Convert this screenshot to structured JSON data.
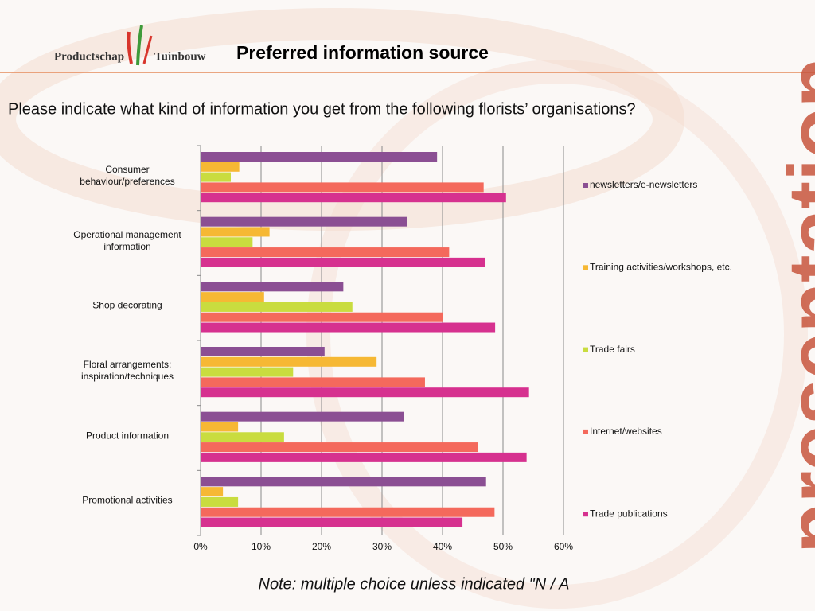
{
  "header": {
    "logo_left": "Productschap",
    "logo_right": "Tuinbouw",
    "title": "Preferred information source"
  },
  "question": "Please indicate what kind of information you get from the following florists’ organisations?",
  "note": "Note: multiple choice unless indicated \"N / A",
  "watermark": "presentation",
  "chart_data": {
    "type": "hbar",
    "categories": [
      "Consumer behaviour/preferences",
      "Operational management information",
      "Shop decorating",
      "Floral arrangements: inspiration/techniques",
      "Product information",
      "Promotional activities"
    ],
    "series": [
      {
        "name": "newsletters/e-newsletters",
        "color": "#8b4f93",
        "values": [
          39.1,
          34.1,
          23.6,
          20.5,
          33.6,
          47.2
        ]
      },
      {
        "name": "Training activities/workshops, etc.",
        "color": "#f6b834",
        "values": [
          6.4,
          11.4,
          10.5,
          29.1,
          6.2,
          3.7
        ]
      },
      {
        "name": "Trade fairs",
        "color": "#c9dc3f",
        "values": [
          5.0,
          8.6,
          25.1,
          15.3,
          13.8,
          6.2
        ]
      },
      {
        "name": "Internet/websites",
        "color": "#f4695c",
        "values": [
          46.8,
          41.1,
          40.0,
          37.1,
          45.9,
          48.6
        ]
      },
      {
        "name": "Trade publications",
        "color": "#d6318f",
        "values": [
          50.5,
          47.1,
          48.7,
          54.3,
          53.9,
          43.3
        ]
      }
    ],
    "xlim": [
      0,
      60
    ],
    "xticks": [
      {
        "value": 0,
        "label": "0%"
      },
      {
        "value": 10,
        "label": "10%"
      },
      {
        "value": 20,
        "label": "20%"
      },
      {
        "value": 30,
        "label": "30%"
      },
      {
        "value": 40,
        "label": "40%"
      },
      {
        "value": 50,
        "label": "50%"
      },
      {
        "value": 60,
        "label": "60%"
      }
    ],
    "grid": true,
    "legend": "right"
  }
}
